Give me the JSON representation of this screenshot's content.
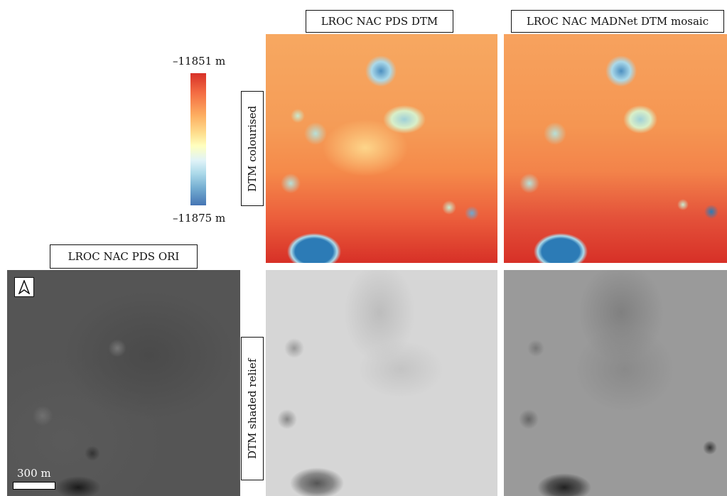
{
  "labels": {
    "col_pds_dtm": "LROC NAC PDS DTM",
    "col_madnet": "LROC NAC MADNet DTM mosaic",
    "ori": "LROC NAC PDS ORI",
    "row_coloured": "DTM colourised",
    "row_relief": "DTM shaded relief"
  },
  "legend": {
    "max": "–11851 m",
    "min": "–11875 m",
    "colors": [
      "#d73027",
      "#f46d43",
      "#fdae61",
      "#fee090",
      "#ffffbf",
      "#e0f3f8",
      "#abd9e9",
      "#74add1",
      "#4575b4"
    ]
  },
  "scalebar": {
    "label": "300 m"
  },
  "icons": {
    "north": "north-arrow-icon"
  }
}
